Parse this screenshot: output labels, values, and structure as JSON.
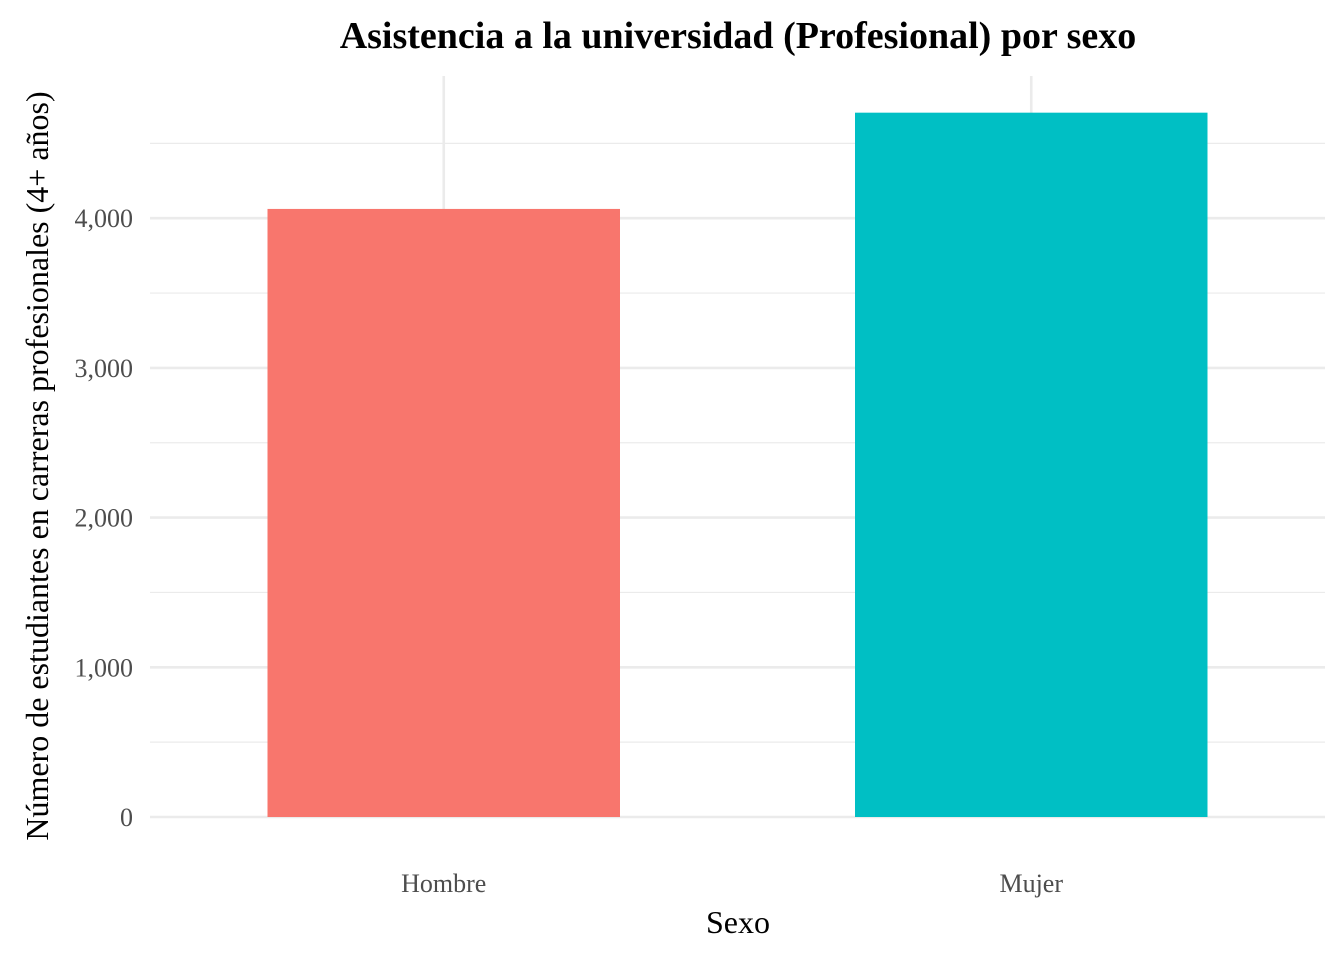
{
  "chart_data": {
    "type": "bar",
    "title": "Asistencia a la universidad (Profesional) por sexo",
    "xlabel": "Sexo",
    "ylabel": "Número de estudiantes en carreras profesionales (4+ años)",
    "categories": [
      "Hombre",
      "Mujer"
    ],
    "values": [
      4062,
      4705
    ],
    "colors": [
      "#F8766D",
      "#00BFC4"
    ],
    "ylim": [
      0,
      4950
    ],
    "yticks": [
      0,
      1000,
      2000,
      3000,
      4000
    ],
    "ytick_labels": [
      "0",
      "1,000",
      "2,000",
      "3,000",
      "4,000"
    ],
    "grid": true,
    "legend": "none"
  }
}
